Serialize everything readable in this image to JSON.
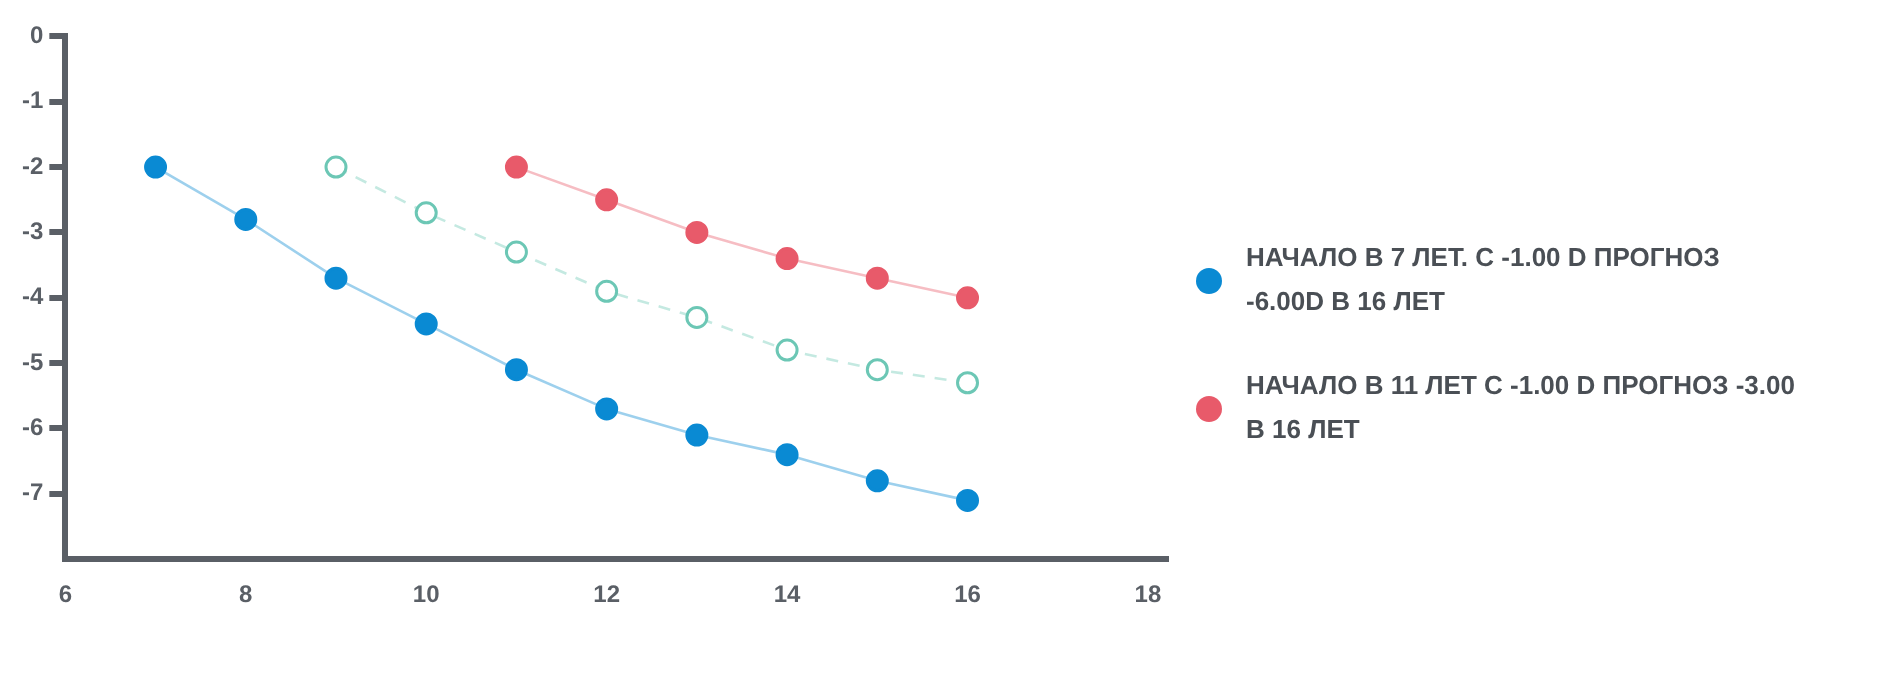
{
  "chart_data": {
    "type": "line",
    "x": [
      7,
      8,
      9,
      10,
      11,
      12,
      13,
      14,
      15,
      16
    ],
    "series": [
      {
        "name": "НАЧАЛО В 7 ЛЕТ. С -1.00 D ПРОГНОЗ -6.00D В 16 ЛЕТ",
        "color": "#0a8ad3",
        "values": [
          -2.0,
          -2.8,
          -3.7,
          -4.4,
          -5.1,
          -5.7,
          -6.1,
          -6.4,
          -6.8,
          -7.1
        ]
      },
      {
        "color": "#6cc7b5",
        "line_style": "dashed",
        "x": [
          9,
          10,
          11,
          12,
          13,
          14,
          15,
          16
        ],
        "values": [
          -2.0,
          -2.7,
          -3.3,
          -3.9,
          -4.3,
          -4.8,
          -5.1,
          -5.3
        ]
      },
      {
        "name": "НАЧАЛО В 11 ЛЕТ С  -1.00 D  ПРОГНОЗ -3.00 В 16 ЛЕТ",
        "color": "#e85a6a",
        "x": [
          11,
          12,
          13,
          14,
          15,
          16
        ],
        "values": [
          -2.0,
          -2.5,
          -3.0,
          -3.4,
          -3.7,
          -4.0
        ]
      }
    ],
    "xlim": [
      6,
      18.2
    ],
    "xticks": [
      6,
      8,
      10,
      12,
      14,
      16,
      18
    ],
    "ylim": [
      -8,
      0
    ],
    "yticks": [
      0,
      -1,
      -2,
      -3,
      -4,
      -5,
      -6,
      -7
    ],
    "grid": false,
    "legend": "right",
    "marker": "circle",
    "line_style": "solid"
  }
}
